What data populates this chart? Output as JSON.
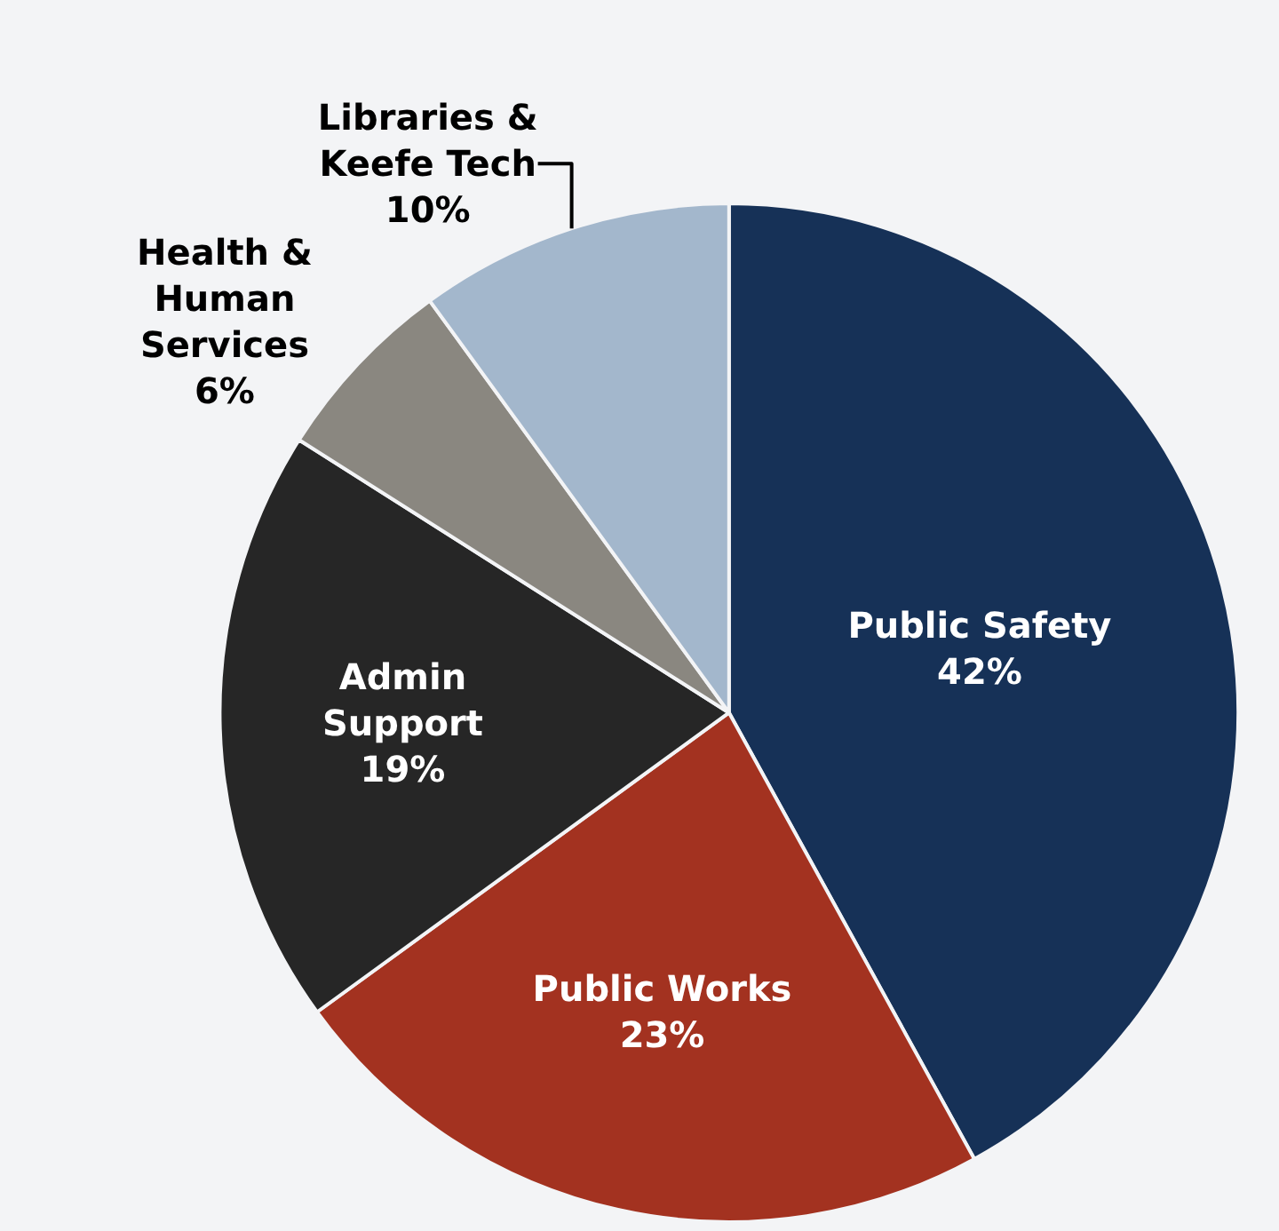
{
  "chart_data": {
    "type": "pie",
    "categories": [
      "Public Safety",
      "Public Works",
      "Admin Support",
      "Health & Human Services",
      "Libraries & Keefe Tech"
    ],
    "values": [
      42,
      23,
      19,
      6,
      10
    ],
    "value_labels": [
      "42%",
      "23%",
      "19%",
      "6%",
      "10%"
    ],
    "colors": [
      "#163157",
      "#a33220",
      "#262626",
      "#8a8780",
      "#a3b7cc"
    ],
    "legend": false
  }
}
